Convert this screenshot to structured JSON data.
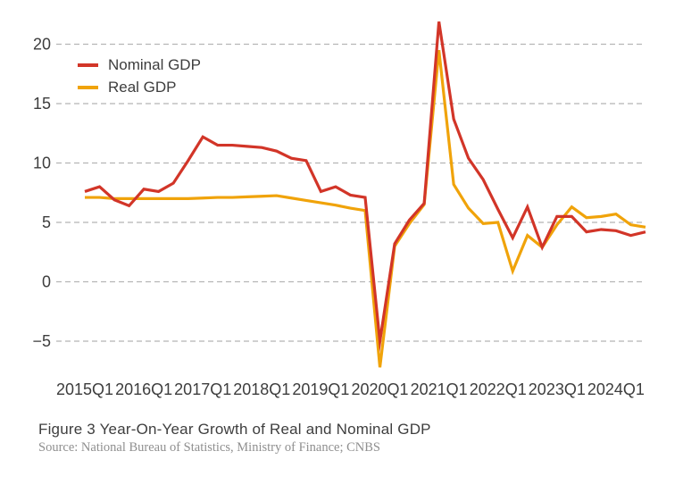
{
  "caption": "Figure 3 Year-On-Year Growth of Real and Nominal GDP",
  "source": "Source: National Bureau of Statistics, Ministry of Finance; CNBS",
  "chart_data": {
    "type": "line",
    "frequency": "quarterly",
    "x_categories": [
      "2015Q1",
      "2015Q2",
      "2015Q3",
      "2015Q4",
      "2016Q1",
      "2016Q2",
      "2016Q3",
      "2016Q4",
      "2017Q1",
      "2017Q2",
      "2017Q3",
      "2017Q4",
      "2018Q1",
      "2018Q2",
      "2018Q3",
      "2018Q4",
      "2019Q1",
      "2019Q2",
      "2019Q3",
      "2019Q4",
      "2020Q1",
      "2020Q2",
      "2020Q3",
      "2020Q4",
      "2021Q1",
      "2021Q2",
      "2021Q3",
      "2021Q4",
      "2022Q1",
      "2022Q2",
      "2022Q3",
      "2022Q4",
      "2023Q1",
      "2023Q2",
      "2023Q3",
      "2023Q4",
      "2024Q1",
      "2024Q2",
      "2024Q3"
    ],
    "x_tick_labels": [
      "2015Q1",
      "2016Q1",
      "2017Q1",
      "2018Q1",
      "2019Q1",
      "2020Q1",
      "2021Q1",
      "2022Q1",
      "2023Q1",
      "2024Q1"
    ],
    "y_ticks": [
      {
        "label": "20",
        "value": 20
      },
      {
        "label": "15",
        "value": 15
      },
      {
        "label": "10",
        "value": 10
      },
      {
        "label": "5",
        "value": 5
      },
      {
        "label": "0",
        "value": 0
      },
      {
        "label": "−5",
        "value": -5
      }
    ],
    "ylim": [
      -8.5,
      22.5
    ],
    "grid": "horizontal-dashed",
    "legend_position": "top-left",
    "series": [
      {
        "name": "Nominal GDP",
        "color": "#d23528",
        "values": [
          7.6,
          8.0,
          6.9,
          6.4,
          7.8,
          7.6,
          8.3,
          10.2,
          12.2,
          11.5,
          11.5,
          11.4,
          11.3,
          11.0,
          10.4,
          10.2,
          7.6,
          8.0,
          7.3,
          7.1,
          -5.0,
          3.2,
          5.2,
          6.6,
          21.9,
          13.7,
          10.4,
          8.6,
          6.1,
          3.7,
          6.3,
          2.9,
          5.5,
          5.5,
          4.2,
          4.4,
          4.3,
          3.9,
          4.2
        ]
      },
      {
        "name": "Real GDP",
        "color": "#f0a30a",
        "values": [
          7.1,
          7.1,
          7.0,
          7.0,
          7.0,
          7.0,
          7.0,
          7.0,
          7.05,
          7.1,
          7.1,
          7.15,
          7.2,
          7.25,
          7.05,
          6.85,
          6.65,
          6.45,
          6.2,
          6.0,
          -7.2,
          3.0,
          4.9,
          6.5,
          19.5,
          8.2,
          6.2,
          4.9,
          5.0,
          0.9,
          3.9,
          2.9,
          4.8,
          6.3,
          5.4,
          5.5,
          5.7,
          4.8,
          4.6
        ]
      }
    ]
  }
}
